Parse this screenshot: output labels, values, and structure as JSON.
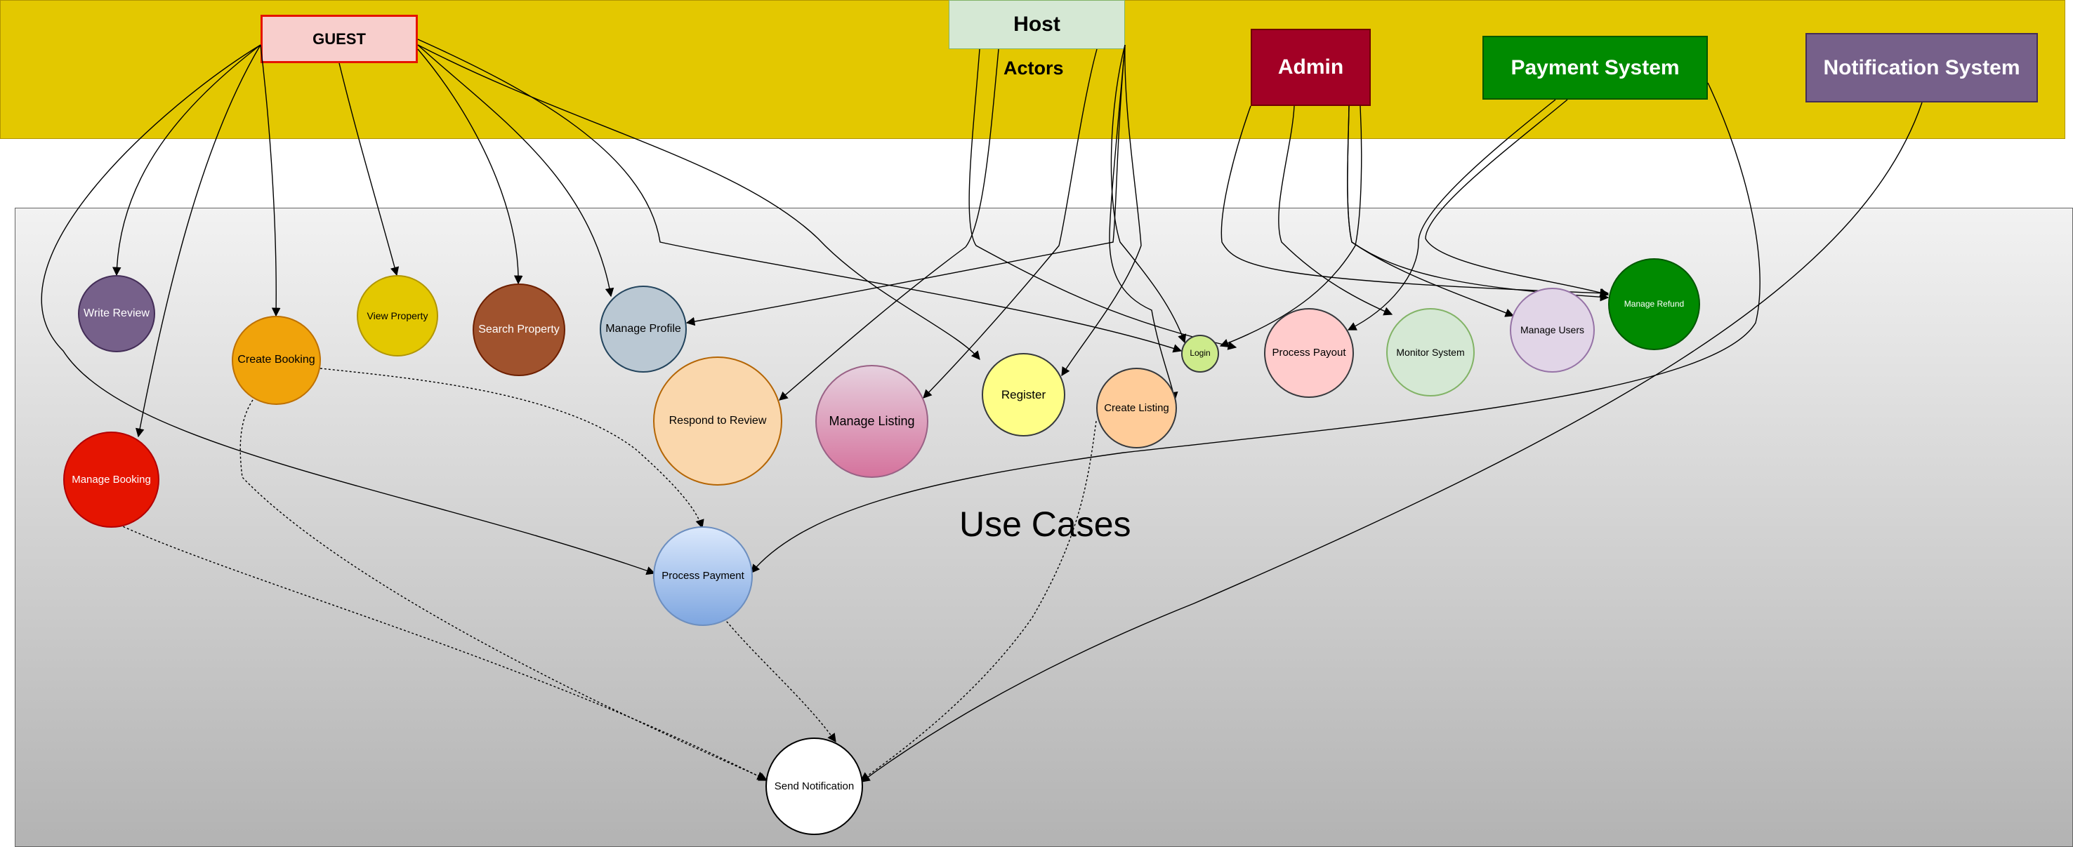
{
  "actors": {
    "guest": "GUEST",
    "host": "Host",
    "admin": "Admin",
    "payment_system": "Payment System",
    "notification_system": "Notification System",
    "band_label": "Actors"
  },
  "use_cases_title": "Use Cases",
  "use_cases": {
    "write_review": "Write Review",
    "create_booking": "Create Booking",
    "view_property": "View Property",
    "search_property": "Search Property",
    "manage_profile": "Manage Profile",
    "manage_booking": "Manage Booking",
    "respond_to_review": "Respond to Review",
    "manage_listing": "Manage Listing",
    "register": "Register",
    "create_listing": "Create Listing",
    "login": "Login",
    "process_payout": "Process Payout",
    "monitor_system": "Monitor System",
    "manage_users": "Manage Users",
    "manage_refund": "Manage Refund",
    "process_payment": "Process Payment",
    "send_notification": "Send Notification"
  },
  "colors": {
    "actors_band": "#e3c800",
    "guest": "#f8cecc",
    "host": "#d5e8d4",
    "admin": "#a20025",
    "payment_system": "#008a00",
    "notification_system": "#76608a"
  }
}
